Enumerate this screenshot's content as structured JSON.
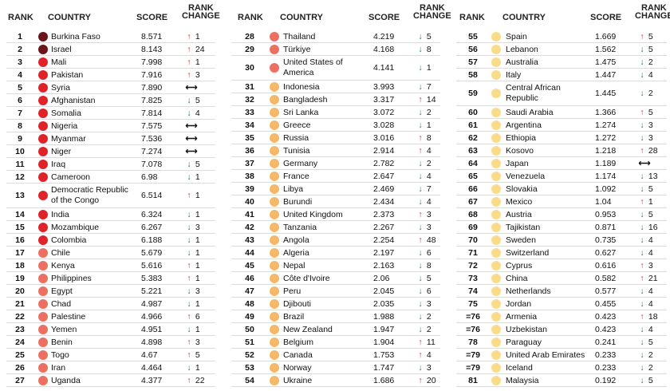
{
  "headers": {
    "rank": "RANK",
    "country": "COUNTRY",
    "score": "SCORE",
    "change_line1": "RANK",
    "change_line2": "CHANGE"
  },
  "colors": {
    "c1": "#6b1419",
    "c2": "#e0232a",
    "c3": "#ec7061",
    "c4": "#f5b96b",
    "c5": "#f9dc8a"
  },
  "columns": [
    {
      "rows": [
        {
          "rank": "1",
          "country": "Burkina Faso",
          "score": "8.571",
          "dir": "up",
          "change": "1",
          "color": "c1"
        },
        {
          "rank": "2",
          "country": "Israel",
          "score": "8.143",
          "dir": "up",
          "change": "24",
          "color": "c1"
        },
        {
          "rank": "3",
          "country": "Mali",
          "score": "7.998",
          "dir": "up",
          "change": "1",
          "color": "c2"
        },
        {
          "rank": "4",
          "country": "Pakistan",
          "score": "7.916",
          "dir": "up",
          "change": "3",
          "color": "c2"
        },
        {
          "rank": "5",
          "country": "Syria",
          "score": "7.890",
          "dir": "same",
          "change": "",
          "color": "c2"
        },
        {
          "rank": "6",
          "country": "Afghanistan",
          "score": "7.825",
          "dir": "down",
          "change": "5",
          "color": "c2"
        },
        {
          "rank": "7",
          "country": "Somalia",
          "score": "7.814",
          "dir": "down",
          "change": "4",
          "color": "c2"
        },
        {
          "rank": "8",
          "country": "Nigeria",
          "score": "7.575",
          "dir": "same",
          "change": "",
          "color": "c2"
        },
        {
          "rank": "9",
          "country": "Myanmar",
          "score": "7.536",
          "dir": "same",
          "change": "",
          "color": "c2"
        },
        {
          "rank": "10",
          "country": "Niger",
          "score": "7.274",
          "dir": "same",
          "change": "",
          "color": "c2"
        },
        {
          "rank": "11",
          "country": "Iraq",
          "score": "7.078",
          "dir": "down",
          "change": "5",
          "color": "c2"
        },
        {
          "rank": "12",
          "country": "Cameroon",
          "score": "6.98",
          "dir": "down",
          "change": "1",
          "color": "c2"
        },
        {
          "rank": "13",
          "country": "Democratic Republic of the Congo",
          "score": "6.514",
          "dir": "up",
          "change": "1",
          "color": "c2",
          "tall": true
        },
        {
          "rank": "14",
          "country": "India",
          "score": "6.324",
          "dir": "down",
          "change": "1",
          "color": "c2"
        },
        {
          "rank": "15",
          "country": "Mozambique",
          "score": "6.267",
          "dir": "down",
          "change": "3",
          "color": "c2"
        },
        {
          "rank": "16",
          "country": "Colombia",
          "score": "6.188",
          "dir": "down",
          "change": "1",
          "color": "c2"
        },
        {
          "rank": "17",
          "country": "Chile",
          "score": "5.679",
          "dir": "down",
          "change": "1",
          "color": "c3"
        },
        {
          "rank": "18",
          "country": "Kenya",
          "score": "5.616",
          "dir": "up",
          "change": "1",
          "color": "c3"
        },
        {
          "rank": "19",
          "country": "Philippines",
          "score": "5.383",
          "dir": "up",
          "change": "1",
          "color": "c3"
        },
        {
          "rank": "20",
          "country": "Egypt",
          "score": "5.221",
          "dir": "down",
          "change": "3",
          "color": "c3"
        },
        {
          "rank": "21",
          "country": "Chad",
          "score": "4.987",
          "dir": "down",
          "change": "1",
          "color": "c3"
        },
        {
          "rank": "22",
          "country": "Palestine",
          "score": "4.966",
          "dir": "up",
          "change": "6",
          "color": "c3"
        },
        {
          "rank": "23",
          "country": "Yemen",
          "score": "4.951",
          "dir": "down",
          "change": "1",
          "color": "c3"
        },
        {
          "rank": "24",
          "country": "Benin",
          "score": "4.898",
          "dir": "up",
          "change": "3",
          "color": "c3"
        },
        {
          "rank": "25",
          "country": "Togo",
          "score": "4.67",
          "dir": "up",
          "change": "5",
          "color": "c3"
        },
        {
          "rank": "26",
          "country": "Iran",
          "score": "4.464",
          "dir": "down",
          "change": "1",
          "color": "c3"
        },
        {
          "rank": "27",
          "country": "Uganda",
          "score": "4.377",
          "dir": "up",
          "change": "22",
          "color": "c3"
        }
      ]
    },
    {
      "rows": [
        {
          "rank": "28",
          "country": "Thailand",
          "score": "4.219",
          "dir": "down",
          "change": "5",
          "color": "c3"
        },
        {
          "rank": "29",
          "country": "Türkiye",
          "score": "4.168",
          "dir": "down",
          "change": "8",
          "color": "c3"
        },
        {
          "rank": "30",
          "country": "United States of America",
          "score": "4.141",
          "dir": "down",
          "change": "1",
          "color": "c3",
          "tall": true
        },
        {
          "rank": "31",
          "country": "Indonesia",
          "score": "3.993",
          "dir": "down",
          "change": "7",
          "color": "c4"
        },
        {
          "rank": "32",
          "country": "Bangladesh",
          "score": "3.317",
          "dir": "up",
          "change": "14",
          "color": "c4"
        },
        {
          "rank": "33",
          "country": "Sri Lanka",
          "score": "3.072",
          "dir": "down",
          "change": "2",
          "color": "c4"
        },
        {
          "rank": "34",
          "country": "Greece",
          "score": "3.028",
          "dir": "down",
          "change": "1",
          "color": "c4"
        },
        {
          "rank": "35",
          "country": "Russia",
          "score": "3.016",
          "dir": "up",
          "change": "8",
          "color": "c4"
        },
        {
          "rank": "36",
          "country": "Tunisia",
          "score": "2.914",
          "dir": "up",
          "change": "4",
          "color": "c4"
        },
        {
          "rank": "37",
          "country": "Germany",
          "score": "2.782",
          "dir": "down",
          "change": "2",
          "color": "c4"
        },
        {
          "rank": "38",
          "country": "France",
          "score": "2.647",
          "dir": "down",
          "change": "4",
          "color": "c4"
        },
        {
          "rank": "39",
          "country": "Libya",
          "score": "2.469",
          "dir": "down",
          "change": "7",
          "color": "c4"
        },
        {
          "rank": "40",
          "country": "Burundi",
          "score": "2.434",
          "dir": "down",
          "change": "4",
          "color": "c4"
        },
        {
          "rank": "41",
          "country": "United Kingdom",
          "score": "2.373",
          "dir": "up",
          "change": "3",
          "color": "c4"
        },
        {
          "rank": "42",
          "country": "Tanzania",
          "score": "2.267",
          "dir": "down",
          "change": "3",
          "color": "c4"
        },
        {
          "rank": "43",
          "country": "Angola",
          "score": "2.254",
          "dir": "up",
          "change": "48",
          "color": "c4"
        },
        {
          "rank": "44",
          "country": "Algeria",
          "score": "2.197",
          "dir": "down",
          "change": "6",
          "color": "c4"
        },
        {
          "rank": "45",
          "country": "Nepal",
          "score": "2.163",
          "dir": "down",
          "change": "8",
          "color": "c4"
        },
        {
          "rank": "46",
          "country": "Côte d'Ivoire",
          "score": "2.06",
          "dir": "down",
          "change": "5",
          "color": "c4"
        },
        {
          "rank": "47",
          "country": "Peru",
          "score": "2.045",
          "dir": "down",
          "change": "6",
          "color": "c4"
        },
        {
          "rank": "48",
          "country": "Djibouti",
          "score": "2.035",
          "dir": "down",
          "change": "3",
          "color": "c4"
        },
        {
          "rank": "49",
          "country": "Brazil",
          "score": "1.988",
          "dir": "down",
          "change": "2",
          "color": "c4"
        },
        {
          "rank": "50",
          "country": "New Zealand",
          "score": "1.947",
          "dir": "down",
          "change": "2",
          "color": "c4"
        },
        {
          "rank": "51",
          "country": "Belgium",
          "score": "1.904",
          "dir": "up",
          "change": "11",
          "color": "c4"
        },
        {
          "rank": "52",
          "country": "Canada",
          "score": "1.753",
          "dir": "up",
          "change": "4",
          "color": "c4"
        },
        {
          "rank": "53",
          "country": "Norway",
          "score": "1.747",
          "dir": "down",
          "change": "3",
          "color": "c4"
        },
        {
          "rank": "54",
          "country": "Ukraine",
          "score": "1.686",
          "dir": "up",
          "change": "20",
          "color": "c4"
        }
      ]
    },
    {
      "rows": [
        {
          "rank": "55",
          "country": "Spain",
          "score": "1.669",
          "dir": "up",
          "change": "5",
          "color": "c5"
        },
        {
          "rank": "56",
          "country": "Lebanon",
          "score": "1.562",
          "dir": "down",
          "change": "5",
          "color": "c5"
        },
        {
          "rank": "57",
          "country": "Australia",
          "score": "1.475",
          "dir": "down",
          "change": "2",
          "color": "c5"
        },
        {
          "rank": "58",
          "country": "Italy",
          "score": "1.447",
          "dir": "down",
          "change": "4",
          "color": "c5"
        },
        {
          "rank": "59",
          "country": "Central African Republic",
          "score": "1.445",
          "dir": "down",
          "change": "2",
          "color": "c5",
          "tall": true
        },
        {
          "rank": "60",
          "country": "Saudi Arabia",
          "score": "1.366",
          "dir": "up",
          "change": "5",
          "color": "c5"
        },
        {
          "rank": "61",
          "country": "Argentina",
          "score": "1.274",
          "dir": "down",
          "change": "3",
          "color": "c5"
        },
        {
          "rank": "62",
          "country": "Ethiopia",
          "score": "1.272",
          "dir": "down",
          "change": "3",
          "color": "c5"
        },
        {
          "rank": "63",
          "country": "Kosovo",
          "score": "1.218",
          "dir": "up",
          "change": "28",
          "color": "c5"
        },
        {
          "rank": "64",
          "country": "Japan",
          "score": "1.189",
          "dir": "same",
          "change": "",
          "color": "c5"
        },
        {
          "rank": "65",
          "country": "Venezuela",
          "score": "1.174",
          "dir": "down",
          "change": "13",
          "color": "c5"
        },
        {
          "rank": "66",
          "country": "Slovakia",
          "score": "1.092",
          "dir": "down",
          "change": "5",
          "color": "c5"
        },
        {
          "rank": "67",
          "country": "Mexico",
          "score": "1.04",
          "dir": "up",
          "change": "1",
          "color": "c5"
        },
        {
          "rank": "68",
          "country": "Austria",
          "score": "0.953",
          "dir": "down",
          "change": "5",
          "color": "c5"
        },
        {
          "rank": "69",
          "country": "Tajikistan",
          "score": "0.871",
          "dir": "down",
          "change": "16",
          "color": "c5"
        },
        {
          "rank": "70",
          "country": "Sweden",
          "score": "0.735",
          "dir": "down",
          "change": "4",
          "color": "c5"
        },
        {
          "rank": "71",
          "country": "Switzerland",
          "score": "0.627",
          "dir": "down",
          "change": "4",
          "color": "c5"
        },
        {
          "rank": "72",
          "country": "Cyprus",
          "score": "0.616",
          "dir": "up",
          "change": "3",
          "color": "c5"
        },
        {
          "rank": "73",
          "country": "China",
          "score": "0.582",
          "dir": "up",
          "change": "21",
          "color": "c5"
        },
        {
          "rank": "74",
          "country": "Netherlands",
          "score": "0.577",
          "dir": "down",
          "change": "4",
          "color": "c5"
        },
        {
          "rank": "75",
          "country": "Jordan",
          "score": "0.455",
          "dir": "down",
          "change": "4",
          "color": "c5"
        },
        {
          "rank": "=76",
          "country": "Armenia",
          "score": "0.423",
          "dir": "up",
          "change": "18",
          "color": "c5"
        },
        {
          "rank": "=76",
          "country": "Uzbekistan",
          "score": "0.423",
          "dir": "down",
          "change": "4",
          "color": "c5"
        },
        {
          "rank": "78",
          "country": "Paraguay",
          "score": "0.241",
          "dir": "down",
          "change": "5",
          "color": "c5"
        },
        {
          "rank": "=79",
          "country": "United Arab Emirates",
          "score": "0.233",
          "dir": "down",
          "change": "2",
          "color": "c5"
        },
        {
          "rank": "=79",
          "country": "Iceland",
          "score": "0.233",
          "dir": "down",
          "change": "2",
          "color": "c5"
        },
        {
          "rank": "81",
          "country": "Malaysia",
          "score": "0.192",
          "dir": "down",
          "change": "5",
          "color": "c5"
        }
      ]
    }
  ]
}
